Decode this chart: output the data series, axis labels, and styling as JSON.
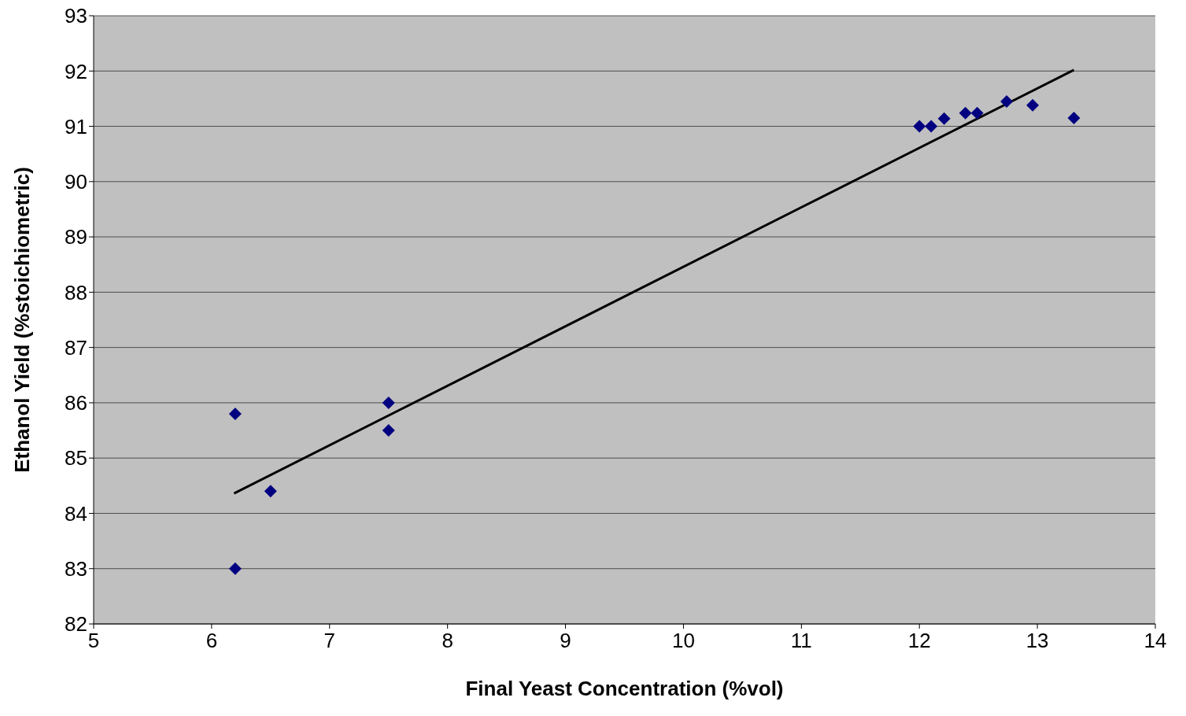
{
  "chart_data": {
    "type": "scatter",
    "xlabel": "Final Yeast Concentration (%vol)",
    "ylabel": "Ethanol Yield (%stoichiometric)",
    "xlim": [
      5,
      14
    ],
    "xticks": [
      5,
      6,
      7,
      8,
      9,
      10,
      11,
      12,
      13,
      14
    ],
    "ylim": [
      82,
      93
    ],
    "yticks": [
      82,
      83,
      84,
      85,
      86,
      87,
      88,
      89,
      90,
      91,
      92,
      93
    ],
    "grid": "y",
    "marker": "diamond",
    "series": [
      {
        "color": "#000080",
        "x": [
          6.2,
          6.2,
          6.5,
          7.5,
          7.5,
          12.0,
          12.1,
          12.21,
          12.39,
          12.49,
          12.74,
          12.96,
          13.31
        ],
        "values": [
          85.8,
          83.0,
          84.4,
          86.0,
          85.5,
          91.0,
          91.0,
          91.14,
          91.24,
          91.24,
          91.45,
          91.38,
          91.15
        ]
      },
      {
        "type": "line",
        "color": "#000000",
        "line_style": "solid",
        "marker": "none",
        "x": [
          6.19,
          13.31
        ],
        "values": [
          84.36,
          92.02
        ]
      }
    ]
  }
}
